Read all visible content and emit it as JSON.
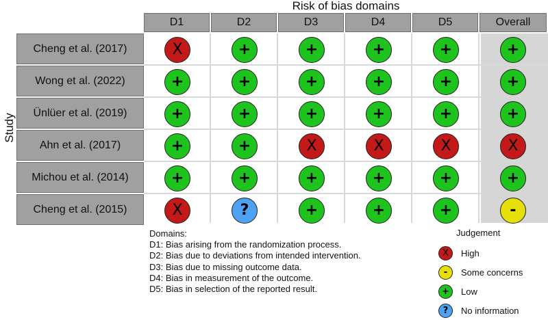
{
  "title": "Risk of bias domains",
  "y_axis_label": "Study",
  "columns": [
    "D1",
    "D2",
    "D3",
    "D4",
    "D5",
    "Overall"
  ],
  "studies": [
    {
      "name": "Cheng et al. (2017)",
      "judgements": [
        "high",
        "low",
        "low",
        "low",
        "low",
        "low"
      ]
    },
    {
      "name": "Wong et al. (2022)",
      "judgements": [
        "low",
        "low",
        "low",
        "low",
        "low",
        "low"
      ]
    },
    {
      "name": "Ünlüer et al. (2019)",
      "judgements": [
        "low",
        "low",
        "low",
        "low",
        "low",
        "low"
      ]
    },
    {
      "name": "Ahn et al. (2017)",
      "judgements": [
        "low",
        "low",
        "high",
        "high",
        "high",
        "high"
      ]
    },
    {
      "name": "Michou et al. (2014)",
      "judgements": [
        "low",
        "low",
        "low",
        "low",
        "low",
        "low"
      ]
    },
    {
      "name": "Cheng et al. (2015)",
      "judgements": [
        "high",
        "noinfo",
        "low",
        "low",
        "low",
        "some"
      ]
    }
  ],
  "symbols": {
    "high": "X",
    "some": "-",
    "low": "+",
    "noinfo": "?"
  },
  "colors": {
    "high": "#c41919",
    "some": "#e6df0a",
    "low": "#1ec31e",
    "noinfo": "#4ea1f3",
    "header_bg": "#a0a0a0",
    "overall_bg": "#d6d6d6"
  },
  "domains": {
    "heading": "Domains:",
    "lines": [
      "D1: Bias arising from the randomization process.",
      "D2: Bias due to deviations from intended intervention.",
      "D3: Bias due to missing outcome data.",
      "D4: Bias in measurement of the outcome.",
      "D5: Bias in selection of the reported result."
    ]
  },
  "legend": {
    "title": "Judgement",
    "items": [
      {
        "key": "high",
        "label": "High"
      },
      {
        "key": "some",
        "label": "Some concerns"
      },
      {
        "key": "low",
        "label": "Low"
      },
      {
        "key": "noinfo",
        "label": "No information"
      }
    ]
  }
}
